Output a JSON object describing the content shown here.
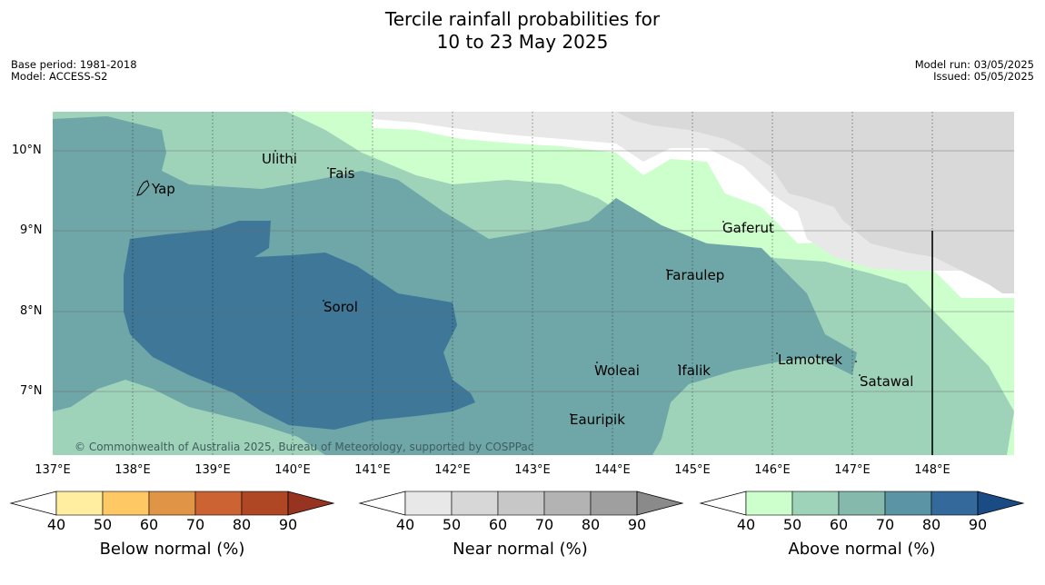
{
  "title_line1": "Tercile rainfall probabilities for",
  "title_line2": "10 to 23 May 2025",
  "base_period": "Base period: 1981-2018",
  "model": "Model: ACCESS-S2",
  "model_run": "Model run: 03/05/2025",
  "issued": "Issued: 05/05/2025",
  "lat_labels": [
    "10°N",
    "9°N",
    "8°N",
    "7°N"
  ],
  "lon_labels": [
    "137°E",
    "138°E",
    "139°E",
    "140°E",
    "141°E",
    "142°E",
    "143°E",
    "144°E",
    "145°E",
    "146°E",
    "147°E",
    "148°E"
  ],
  "places": {
    "ulithi": "Ulithi",
    "fais": "Fais",
    "yap": "Yap",
    "gaferut": "Gaferut",
    "faraulep": "Faraulep",
    "sorol": "Sorol",
    "lamotrek": "Lamotrek",
    "woleai": "Woleai",
    "ifalik": "Ifalik",
    "satawal": "Satawal",
    "eauripik": "Eauripik"
  },
  "copyright": "© Commonwealth of Australia 2025, Bureau of Meteorology, supported by COSPPac",
  "colorbars": {
    "below": {
      "label": "Below normal (%)",
      "ticks": [
        "40",
        "50",
        "60",
        "70",
        "80",
        "90"
      ],
      "colors": [
        "#ffeda0",
        "#fec965",
        "#e09446",
        "#cc6333",
        "#af4624",
        "#963421"
      ]
    },
    "near": {
      "label": "Near normal (%)",
      "ticks": [
        "40",
        "50",
        "60",
        "70",
        "80",
        "90"
      ],
      "colors": [
        "#e8e8e8",
        "#d7d7d7",
        "#c7c7c7",
        "#b3b3b3",
        "#9f9f9f",
        "#8a8a8a"
      ]
    },
    "above": {
      "label": "Above normal (%)",
      "ticks": [
        "40",
        "50",
        "60",
        "70",
        "80",
        "90"
      ],
      "colors": [
        "#ccffcc",
        "#9fd3b9",
        "#84b9ab",
        "#5b94a4",
        "#336a9b",
        "#1a4b84"
      ]
    }
  }
}
